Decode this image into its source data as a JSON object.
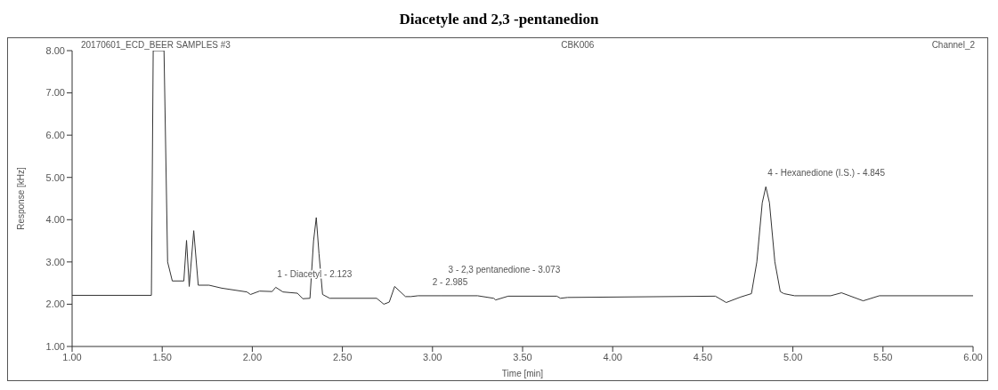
{
  "chart_data": {
    "type": "line",
    "title": "Diacetyle and 2,3 -pentanedion",
    "xlabel": "Time [min]",
    "ylabel": "Response [kHz]",
    "annotations": [
      "20170601_ECD_BEER SAMPLES #3",
      "CBK006",
      "Channel_2",
      {
        "text": "1 - Diacetyl - 2.123",
        "x": 2.123,
        "y": 2.38
      },
      {
        "text": "2 - 2.985",
        "x": 2.985,
        "y": 2.2
      },
      {
        "text": "3 - 2,3 pentanedione - 3.073",
        "x": 3.073,
        "y": 2.2
      },
      {
        "text": "4 - Hexanedione (I.S.) - 4.845",
        "x": 4.845,
        "y": 4.78
      }
    ],
    "x": [
      1.0,
      1.44,
      1.45,
      1.51,
      1.53,
      1.556,
      1.62,
      1.635,
      1.65,
      1.675,
      1.7,
      1.76,
      1.83,
      1.97,
      1.99,
      2.04,
      2.11,
      2.13,
      2.17,
      2.25,
      2.28,
      2.32,
      2.34,
      2.355,
      2.37,
      2.39,
      2.43,
      2.69,
      2.73,
      2.76,
      2.79,
      2.85,
      2.88,
      2.92,
      3.05,
      3.25,
      3.34,
      3.35,
      3.42,
      3.69,
      3.71,
      3.75,
      4.57,
      4.63,
      4.71,
      4.77,
      4.8,
      4.83,
      4.85,
      4.87,
      4.9,
      4.93,
      4.95,
      5.01,
      5.21,
      5.27,
      5.39,
      5.48,
      6.0
    ],
    "series": [
      {
        "color": "#333333",
        "values": [
          2.21,
          2.21,
          8.0,
          8.0,
          3.0,
          2.55,
          2.55,
          3.51,
          2.42,
          3.74,
          2.45,
          2.45,
          2.38,
          2.29,
          2.23,
          2.31,
          2.3,
          2.4,
          2.29,
          2.26,
          2.13,
          2.14,
          3.5,
          4.05,
          3.2,
          2.23,
          2.14,
          2.14,
          2.0,
          2.05,
          2.42,
          2.18,
          2.18,
          2.2,
          2.2,
          2.2,
          2.14,
          2.1,
          2.19,
          2.19,
          2.14,
          2.16,
          2.19,
          2.04,
          2.17,
          2.25,
          3.0,
          4.4,
          4.78,
          4.4,
          3.0,
          2.3,
          2.25,
          2.2,
          2.2,
          2.27,
          2.08,
          2.2,
          2.2
        ]
      }
    ],
    "xlim": [
      1.0,
      6.0
    ],
    "xticks": [
      {
        "value": 1,
        "label": "1.00"
      },
      {
        "value": 1.5,
        "label": "1.50"
      },
      {
        "value": 2,
        "label": "2.00"
      },
      {
        "value": 2.5,
        "label": "2.50"
      },
      {
        "value": 3,
        "label": "3.00"
      },
      {
        "value": 3.5,
        "label": "3.50"
      },
      {
        "value": 4,
        "label": "4.00"
      },
      {
        "value": 4.5,
        "label": "4.50"
      },
      {
        "value": 5,
        "label": "5.00"
      },
      {
        "value": 5.5,
        "label": "5.50"
      },
      {
        "value": 6,
        "label": "6.00"
      }
    ],
    "ylim": [
      1.0,
      8.0
    ],
    "yticks": [
      {
        "value": 1,
        "label": "1.00"
      },
      {
        "value": 2,
        "label": "2.00"
      },
      {
        "value": 3,
        "label": "3.00"
      },
      {
        "value": 4,
        "label": "4.00"
      },
      {
        "value": 5,
        "label": "5.00"
      },
      {
        "value": 6,
        "label": "6.00"
      },
      {
        "value": 7,
        "label": "7.00"
      },
      {
        "value": 8,
        "label": "8.00"
      }
    ],
    "grid": false,
    "legend": false,
    "marker": "none",
    "line_style": "solid"
  }
}
